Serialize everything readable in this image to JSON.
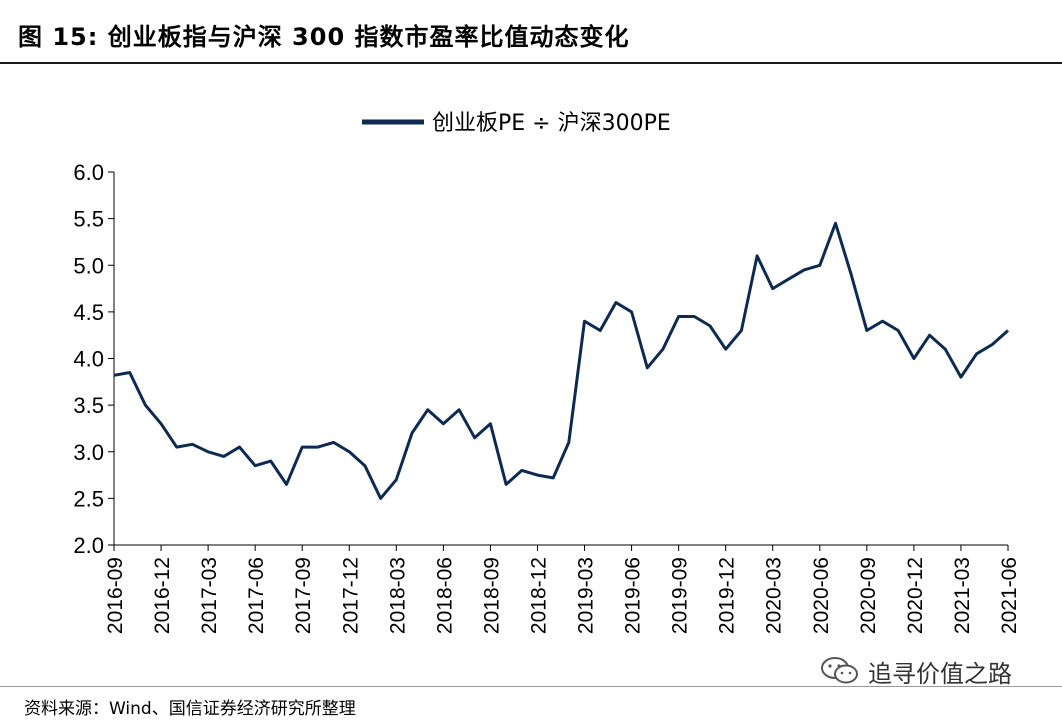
{
  "header": {
    "title": "图  15:  创业板指与沪深 300 指数市盈率比值动态变化"
  },
  "footer": {
    "source": "资料来源：Wind、国信证券经济研究所整理",
    "watermark": "追寻价值之路",
    "watermark_icon": "wechat-icon"
  },
  "colors": {
    "series": "#0d2a52"
  },
  "chart_data": {
    "type": "line",
    "title": "",
    "xlabel": "",
    "ylabel": "",
    "ylim": [
      2.0,
      6.0
    ],
    "yticks": [
      "2.0",
      "2.5",
      "3.0",
      "3.5",
      "4.0",
      "4.5",
      "5.0",
      "5.5",
      "6.0"
    ],
    "xticks": [
      "2016-09",
      "2016-12",
      "2017-03",
      "2017-06",
      "2017-09",
      "2017-12",
      "2018-03",
      "2018-06",
      "2018-09",
      "2018-12",
      "2019-03",
      "2019-06",
      "2019-09",
      "2019-12",
      "2020-03",
      "2020-06",
      "2020-09",
      "2020-12",
      "2021-03",
      "2021-06"
    ],
    "legend_position": "top-center",
    "grid": false,
    "series": [
      {
        "name": "创业板PE ÷ 沪深300PE",
        "x": [
          "2016-09",
          "2016-10",
          "2016-11",
          "2016-12",
          "2017-01",
          "2017-02",
          "2017-03",
          "2017-04",
          "2017-05",
          "2017-06",
          "2017-07",
          "2017-08",
          "2017-09",
          "2017-10",
          "2017-11",
          "2017-12",
          "2018-01",
          "2018-02",
          "2018-03",
          "2018-04",
          "2018-05",
          "2018-06",
          "2018-07",
          "2018-08",
          "2018-09",
          "2018-10",
          "2018-11",
          "2018-12",
          "2019-01",
          "2019-02",
          "2019-03",
          "2019-04",
          "2019-05",
          "2019-06",
          "2019-07",
          "2019-08",
          "2019-09",
          "2019-10",
          "2019-11",
          "2019-12",
          "2020-01",
          "2020-02",
          "2020-03",
          "2020-04",
          "2020-05",
          "2020-06",
          "2020-07",
          "2020-08",
          "2020-09",
          "2020-10",
          "2020-11",
          "2020-12",
          "2021-01",
          "2021-02",
          "2021-03",
          "2021-04",
          "2021-05",
          "2021-06"
        ],
        "values": [
          3.82,
          3.85,
          3.5,
          3.3,
          3.05,
          3.08,
          3.0,
          2.95,
          3.05,
          2.85,
          2.9,
          2.65,
          3.05,
          3.05,
          3.1,
          3.0,
          2.85,
          2.5,
          2.7,
          3.2,
          3.45,
          3.3,
          3.45,
          3.15,
          3.3,
          2.65,
          2.8,
          2.75,
          2.72,
          3.1,
          4.4,
          4.3,
          4.6,
          4.5,
          3.9,
          4.1,
          4.45,
          4.45,
          4.35,
          4.1,
          4.3,
          5.1,
          4.75,
          4.85,
          4.95,
          5.0,
          5.45,
          4.9,
          4.3,
          4.4,
          4.3,
          4.0,
          4.25,
          4.1,
          3.8,
          4.05,
          4.15,
          4.3
        ]
      }
    ]
  }
}
